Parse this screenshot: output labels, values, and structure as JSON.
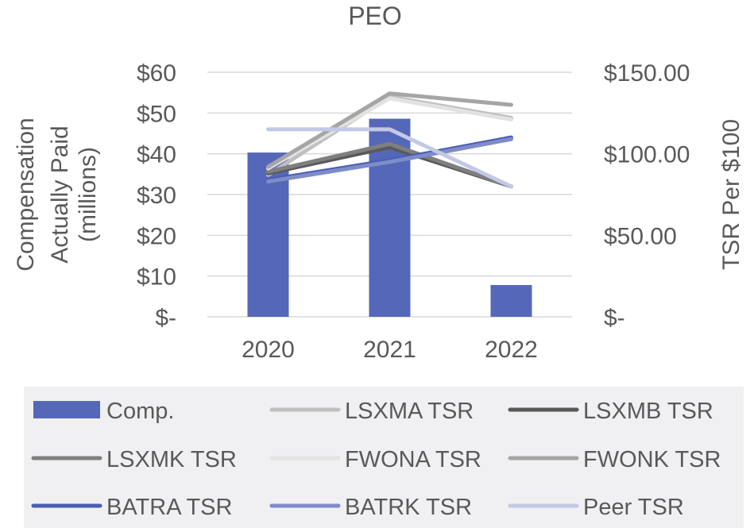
{
  "chart_data": {
    "type": "bar",
    "title": "PEO",
    "categories": [
      "2020",
      "2021",
      "2022"
    ],
    "ylabel": "Compensation Actually Paid (millions)",
    "ylabel_lines": [
      "Compensation",
      "Actually Paid",
      "(millions)"
    ],
    "y2label": "TSR Per $100",
    "ylim": [
      0,
      60
    ],
    "y2lim": [
      0,
      150
    ],
    "yticks": [
      0,
      10,
      20,
      30,
      40,
      50,
      60
    ],
    "yticklabels": [
      "$-",
      "$10",
      "$20",
      "$30",
      "$40",
      "$50",
      "$60"
    ],
    "y2ticks": [
      0,
      50,
      100,
      150
    ],
    "y2ticklabels": [
      "$-",
      "$50.00",
      "$100.00",
      "$150.00"
    ],
    "grid": true,
    "legend_position": "bottom",
    "series": [
      {
        "name": "Comp.",
        "type": "bar",
        "axis": "left",
        "color": "#5567b8",
        "values": [
          40.3,
          48.6,
          7.8
        ]
      },
      {
        "name": "LSXMA TSR",
        "type": "line",
        "axis": "right",
        "color": "#bfbfbf",
        "values": [
          87,
          135,
          122
        ]
      },
      {
        "name": "LSXMB TSR",
        "type": "line",
        "axis": "right",
        "color": "#595959",
        "values": [
          88,
          104,
          80
        ]
      },
      {
        "name": "LSXMK TSR",
        "type": "line",
        "axis": "right",
        "color": "#7f7f7f",
        "values": [
          89,
          106,
          80
        ]
      },
      {
        "name": "FWONA TSR",
        "type": "line",
        "axis": "right",
        "color": "#e2e2e2",
        "values": [
          91,
          134,
          121
        ]
      },
      {
        "name": "FWONK TSR",
        "type": "line",
        "axis": "right",
        "color": "#a5a5a5",
        "values": [
          92,
          137,
          130
        ]
      },
      {
        "name": "BATRA TSR",
        "type": "line",
        "axis": "right",
        "color": "#4a5eb3",
        "values": [
          84,
          96,
          110
        ]
      },
      {
        "name": "BATRK TSR",
        "type": "line",
        "axis": "right",
        "color": "#7e8cc9",
        "values": [
          83,
          95,
          109
        ]
      },
      {
        "name": "Peer TSR",
        "type": "line",
        "axis": "right",
        "color": "#c3c8e6",
        "values": [
          115,
          115,
          80
        ]
      }
    ]
  }
}
